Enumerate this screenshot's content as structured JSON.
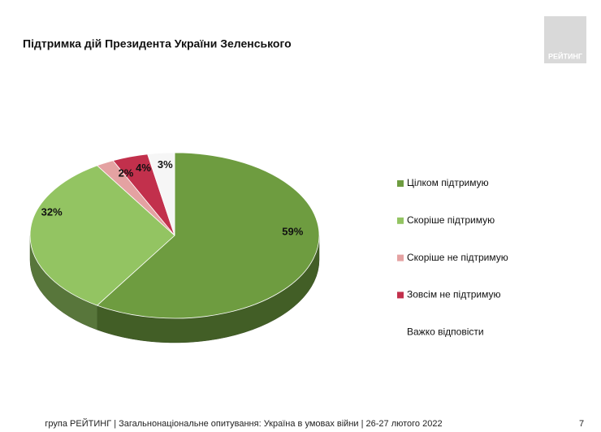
{
  "chart_data": {
    "type": "pie3d",
    "title": "Підтримка дій Президента України Зеленського",
    "categories": [
      "Цілком підтримую",
      "Скоріше підтримую",
      "Скоріше не підтримую",
      "Зовсім не підтримую",
      "Важко відповісти"
    ],
    "values": [
      59,
      32,
      2,
      4,
      3
    ],
    "value_labels": [
      "59%",
      "32%",
      "2%",
      "4%",
      "3%"
    ],
    "colors": [
      "#6e9c40",
      "#93c462",
      "#e4a2a2",
      "#c2304c",
      "#f6f6f6"
    ],
    "legend": "right"
  },
  "logo": "РЕЙТИНГ",
  "footer": "група РЕЙТИНГ | Загальнонаціональне опитування: Україна в умовах війни | 26-27 лютого 2022",
  "page_number": "7"
}
